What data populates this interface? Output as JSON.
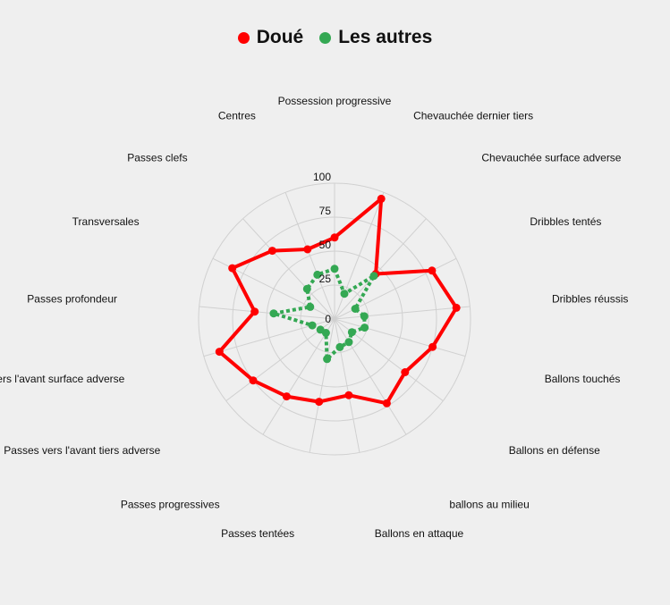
{
  "chart_data": {
    "type": "radar",
    "range": [
      0,
      100
    ],
    "ticks": [
      "0",
      "25",
      "50",
      "75",
      "100"
    ],
    "grid": true,
    "legend_position": "top-center",
    "axes": [
      "Possession progressive",
      "Chevauchée dernier tiers",
      "Chevauchée surface adverse",
      "Dribbles tentés",
      "Dribbles réussis",
      "Ballons touchés",
      "Ballons en défense",
      "ballons au milieu",
      "Ballons en attaque",
      "Passes tentées",
      "Passes progressives",
      "Passes vers l'avant tiers adverse",
      "Passes vers l'avant surface adverse",
      "Passes profondeur",
      "Transversales",
      "Passes clefs",
      "Centres"
    ],
    "series": [
      {
        "name": "Doué",
        "color": "#ff0000",
        "line_style": "solid",
        "values": [
          60,
          95,
          45,
          80,
          90,
          75,
          65,
          73,
          57,
          62,
          67,
          75,
          88,
          59,
          84,
          68,
          55
        ]
      },
      {
        "name": "Les autres",
        "color": "#34a853",
        "line_style": "dotted",
        "values": [
          37,
          20,
          43,
          17,
          22,
          23,
          16,
          20,
          21,
          30,
          12,
          13,
          17,
          45,
          20,
          30,
          35
        ]
      }
    ]
  }
}
